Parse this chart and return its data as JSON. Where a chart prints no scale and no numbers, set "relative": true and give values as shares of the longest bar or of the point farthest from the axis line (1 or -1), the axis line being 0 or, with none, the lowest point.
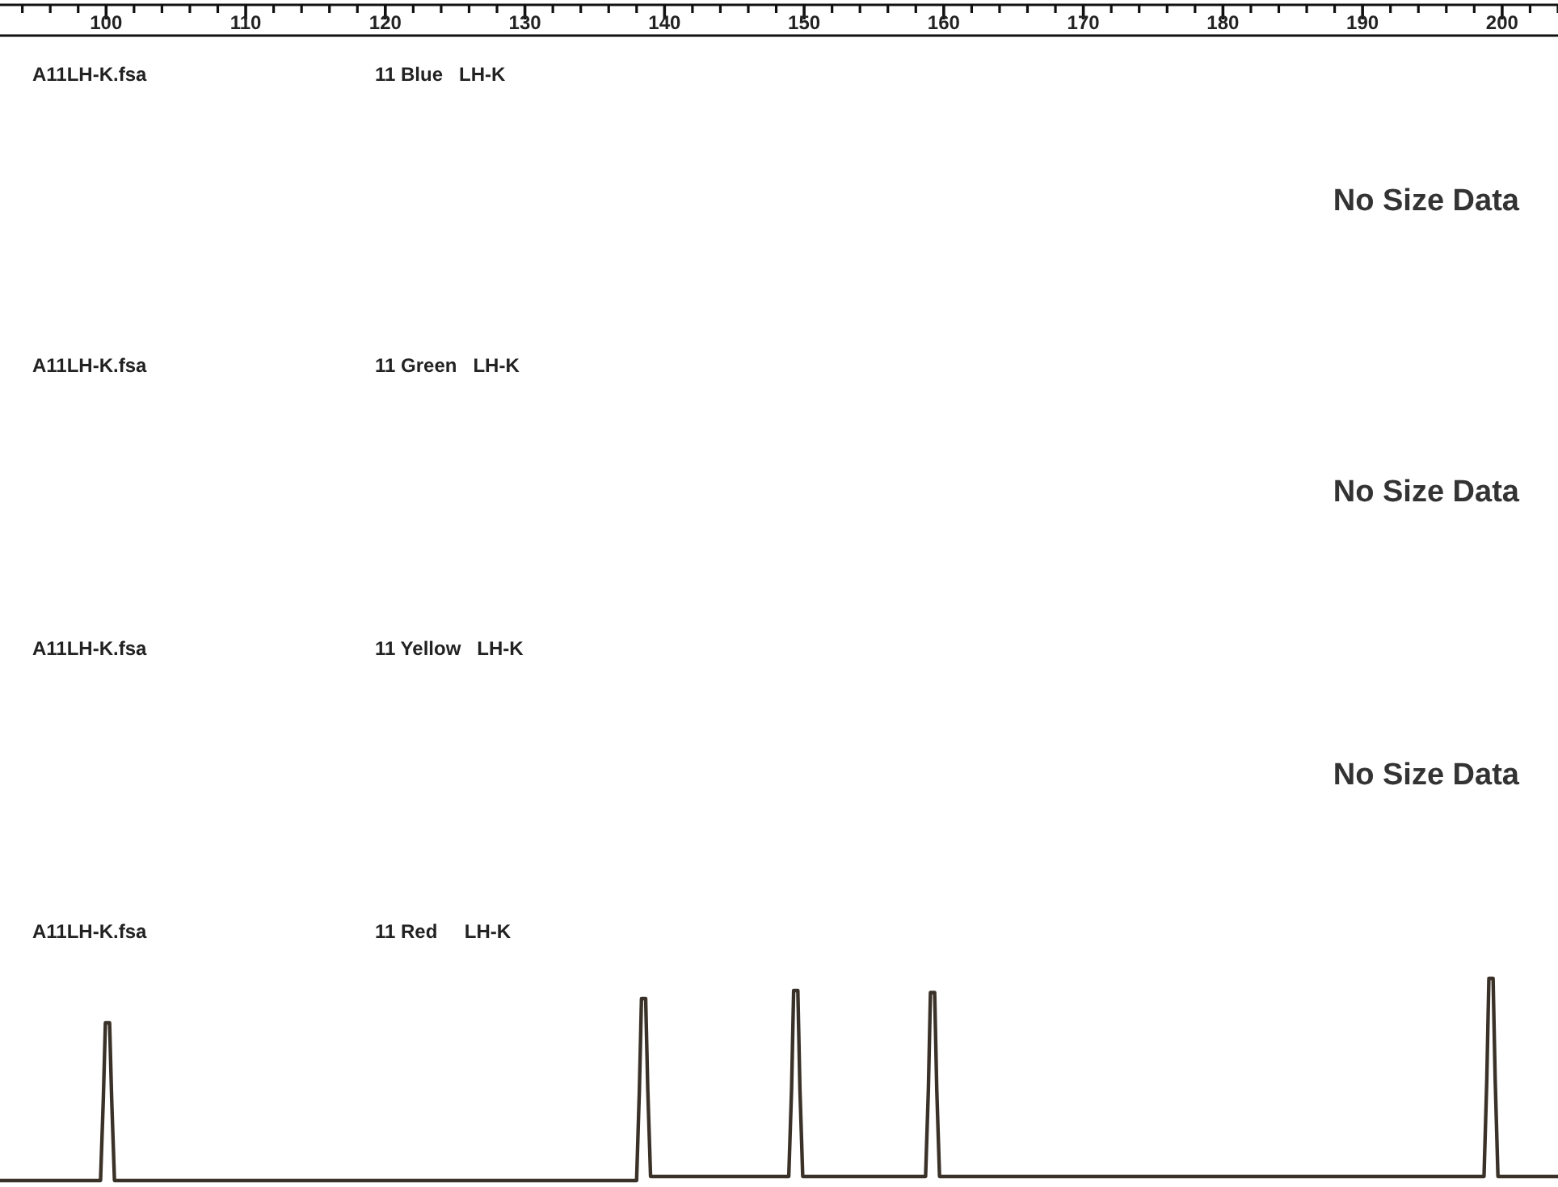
{
  "chart_data": [
    {
      "type": "other",
      "title": "A11LH-K.fsa",
      "subtitle": "11 Blue   LH-K",
      "annotations": [
        "No Size Data"
      ]
    },
    {
      "type": "other",
      "title": "A11LH-K.fsa",
      "subtitle": "11 Green   LH-K",
      "annotations": [
        "No Size Data"
      ]
    },
    {
      "type": "other",
      "title": "A11LH-K.fsa",
      "subtitle": "11 Yellow   LH-K",
      "annotations": [
        "No Size Data"
      ]
    },
    {
      "type": "line",
      "title": "A11LH-K.fsa",
      "subtitle": "11 Red     LH-K",
      "relative": true,
      "xlim": [
        92.4,
        204
      ],
      "xticks": [
        100,
        110,
        120,
        130,
        140,
        150,
        160,
        170,
        180,
        190,
        200
      ],
      "series": [
        {
          "color": "#3a3228",
          "x": [
            92.4,
            99.6,
            99.8,
            99.95,
            100.25,
            100.4,
            100.6,
            138.0,
            138.2,
            138.35,
            138.65,
            138.8,
            139.0,
            148.9,
            149.1,
            149.25,
            149.55,
            149.7,
            149.9,
            158.7,
            158.9,
            159.05,
            159.35,
            159.5,
            159.7,
            198.7,
            198.9,
            199.05,
            199.35,
            199.5,
            199.7,
            204
          ],
          "values": [
            0,
            0,
            0.4,
            0.78,
            0.78,
            0.4,
            0,
            0,
            0.45,
            0.9,
            0.9,
            0.45,
            0.02,
            0.02,
            0.45,
            0.94,
            0.94,
            0.45,
            0.02,
            0.02,
            0.45,
            0.93,
            0.93,
            0.45,
            0.02,
            0.02,
            0.5,
            1,
            1,
            0.5,
            0.02,
            0.02
          ]
        }
      ]
    }
  ]
}
